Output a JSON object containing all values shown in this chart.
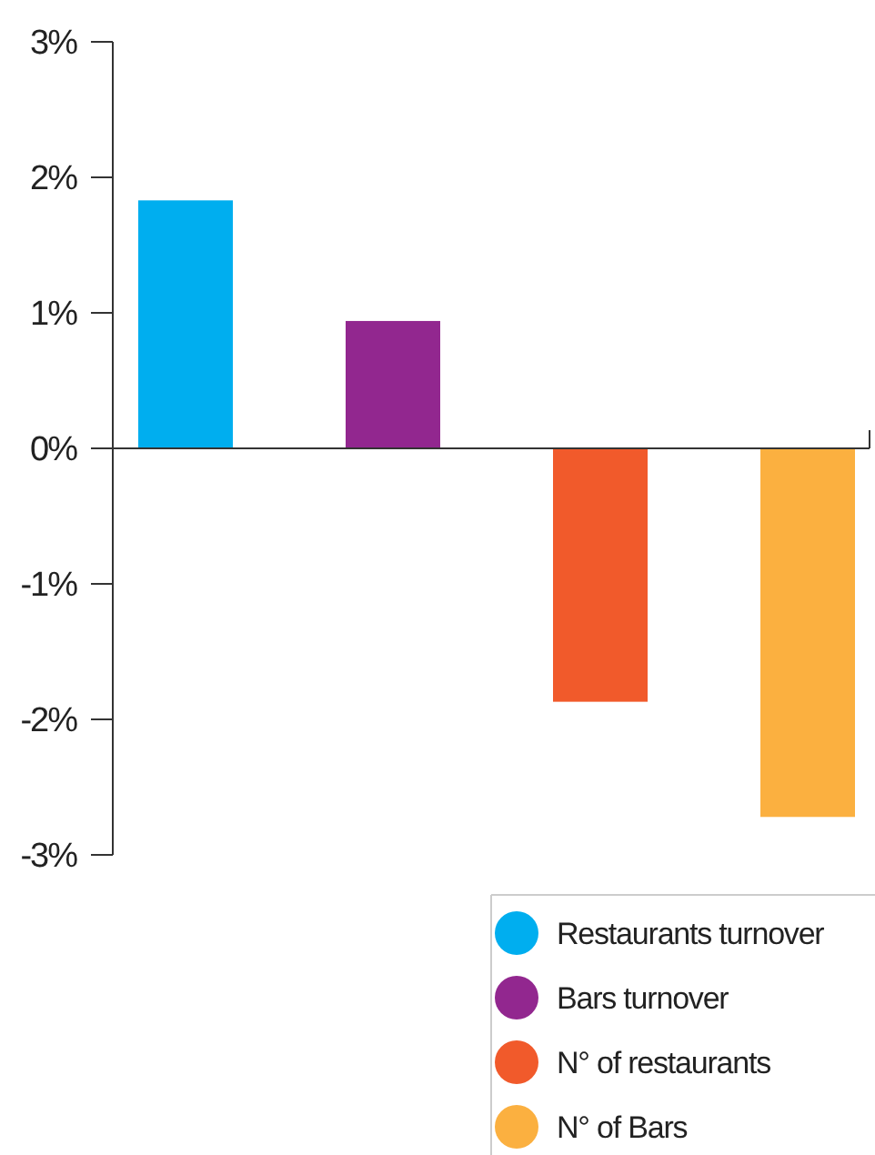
{
  "chart_data": {
    "type": "bar",
    "categories": [
      null,
      null,
      null,
      null
    ],
    "series": [
      {
        "name": "Restaurants turnover",
        "color": "#00aeef",
        "values": [
          1.83,
          null,
          null,
          null
        ]
      },
      {
        "name": "Bars turnover",
        "color": "#92278f",
        "values": [
          null,
          0.94,
          null,
          null
        ]
      },
      {
        "name": "N° of restaurants",
        "color": "#f15a2b",
        "values": [
          null,
          null,
          -1.87,
          null
        ]
      },
      {
        "name": "N° of Bars",
        "color": "#fbb040",
        "values": [
          null,
          null,
          null,
          -2.72
        ]
      }
    ],
    "ylim": [
      -3,
      3
    ],
    "yticks": [
      {
        "value": 3,
        "label": "3%"
      },
      {
        "value": 2,
        "label": "2%"
      },
      {
        "value": 1,
        "label": "1%"
      },
      {
        "value": 0,
        "label": "0%"
      },
      {
        "value": -1,
        "label": "-1%"
      },
      {
        "value": -2,
        "label": "-2%"
      },
      {
        "value": -3,
        "label": "-3%"
      }
    ],
    "legend": "bottom"
  }
}
